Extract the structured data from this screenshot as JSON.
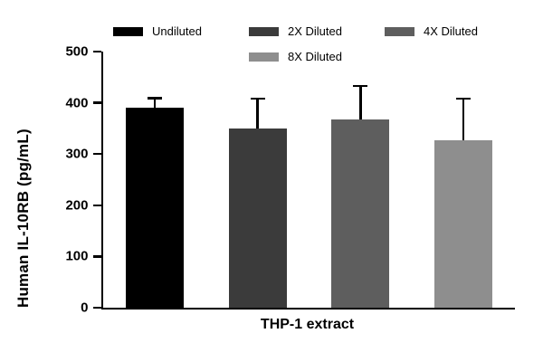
{
  "chart_data": {
    "type": "bar",
    "title": "",
    "categories": [
      "Undiluted",
      "2X Diluted",
      "4X Diluted",
      "8X Diluted"
    ],
    "values": [
      391,
      350,
      367,
      326
    ],
    "errors_upper": [
      20,
      60,
      68,
      84
    ],
    "bar_colors": [
      "#000000",
      "#3b3b3b",
      "#5e5e5e",
      "#8e8e8e"
    ],
    "xlabel": "THP-1 extract",
    "ylabel": "Human IL-10RB (pg/mL)",
    "ylim": [
      0,
      500
    ],
    "yticks": [
      0,
      100,
      200,
      300,
      400,
      500
    ],
    "grid": false,
    "error_bar_style": "upper-with-cap",
    "legend": {
      "position": "top",
      "rows": [
        [
          "Undiluted",
          "2X Diluted",
          "4X Diluted"
        ],
        [
          "8X Diluted"
        ]
      ]
    }
  }
}
